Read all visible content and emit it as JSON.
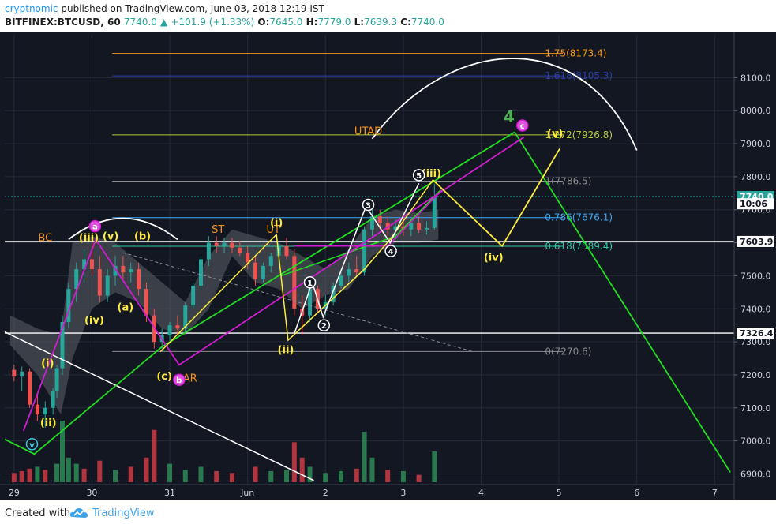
{
  "header": {
    "author": "cryptnomic",
    "published": "published on TradingView.com, June 03, 2018 12:19 IST",
    "symbol": "BITFINEX:BTCUSD, 60",
    "last": "7740.0",
    "change_arrow": "▲",
    "change": "+101.9 (+1.33%)",
    "o_label": "O:",
    "o_value": "7645.0",
    "h_label": "H:",
    "h_value": "7779.0",
    "l_label": "L:",
    "l_value": "7639.3",
    "c_label": "C:",
    "c_value": "7740.0"
  },
  "footer": {
    "created_with": "Created with",
    "brand": "TradingView"
  },
  "chart_data": {
    "type": "candlestick",
    "symbol": "BITFINEX:BTCUSD",
    "interval": "60",
    "x_ticks": [
      "29",
      "30",
      "31",
      "Jun",
      "2",
      "3",
      "4",
      "5",
      "6",
      "7"
    ],
    "x_tick_days": [
      29,
      30,
      31,
      32,
      33,
      34,
      35,
      36,
      37,
      38
    ],
    "y_ticks": [
      6900,
      7000,
      7100,
      7200,
      7300,
      7400,
      7500,
      7600,
      7700,
      7800,
      7900,
      8000,
      8100
    ],
    "ylim": [
      6870,
      8230
    ],
    "xlim": [
      28.88,
      38.25
    ],
    "price_tags": [
      {
        "label": "7740.0",
        "value": 7740,
        "color": "#26a69a",
        "text_color": "#ffffff"
      },
      {
        "label": "10:06",
        "value": 7718,
        "color": "#ffffff",
        "text_color": "#131722"
      },
      {
        "label": "7603.9",
        "value": 7603.9,
        "color": "#ffffff",
        "text_color": "#131722"
      },
      {
        "label": "7326.4",
        "value": 7326.4,
        "color": "#ffffff",
        "text_color": "#131722"
      }
    ],
    "horizontal_lines": [
      7603.9,
      7326.4
    ],
    "last_price_line": 7740,
    "fib_levels": [
      {
        "label": "1.75(8173.4)",
        "ratio": 1.75,
        "value": 8173.4,
        "color": "#f7931a"
      },
      {
        "label": "1.618(8105.3)",
        "ratio": 1.618,
        "value": 8105.3,
        "color": "#2a3ea8"
      },
      {
        "label": "1.272(7926.8)",
        "ratio": 1.272,
        "value": 7926.8,
        "color": "#b5c93a"
      },
      {
        "label": "1(7786.5)",
        "ratio": 1,
        "value": 7786.5,
        "color": "#8a8a8a"
      },
      {
        "label": "0.786(7676.1)",
        "ratio": 0.786,
        "value": 7676.1,
        "color": "#3fa9f5"
      },
      {
        "label": "0.618(7589.4)",
        "ratio": 0.618,
        "value": 7589.4,
        "color": "#2ec7a0"
      },
      {
        "label": "0(7270.6)",
        "ratio": 0,
        "value": 7270.6,
        "color": "#8a8a8a"
      }
    ],
    "candles": [
      [
        29.0,
        7215,
        7230,
        7180,
        7195
      ],
      [
        29.1,
        7195,
        7225,
        7150,
        7210
      ],
      [
        29.2,
        7210,
        7220,
        7100,
        7110
      ],
      [
        29.3,
        7110,
        7140,
        7060,
        7080
      ],
      [
        29.4,
        7080,
        7120,
        7040,
        7100
      ],
      [
        29.5,
        7100,
        7160,
        7080,
        7150
      ],
      [
        29.55,
        7150,
        7230,
        7130,
        7220
      ],
      [
        29.62,
        7220,
        7380,
        7200,
        7360
      ],
      [
        29.7,
        7360,
        7480,
        7340,
        7460
      ],
      [
        29.8,
        7460,
        7540,
        7420,
        7520
      ],
      [
        29.9,
        7520,
        7580,
        7480,
        7550
      ],
      [
        30.0,
        7550,
        7600,
        7500,
        7520
      ],
      [
        30.1,
        7520,
        7560,
        7420,
        7440
      ],
      [
        30.2,
        7440,
        7520,
        7420,
        7500
      ],
      [
        30.3,
        7500,
        7560,
        7470,
        7530
      ],
      [
        30.4,
        7530,
        7560,
        7490,
        7510
      ],
      [
        30.5,
        7510,
        7540,
        7480,
        7520
      ],
      [
        30.6,
        7520,
        7540,
        7440,
        7460
      ],
      [
        30.7,
        7460,
        7480,
        7360,
        7380
      ],
      [
        30.8,
        7380,
        7400,
        7280,
        7300
      ],
      [
        30.9,
        7300,
        7340,
        7270,
        7320
      ],
      [
        31.0,
        7320,
        7360,
        7300,
        7350
      ],
      [
        31.1,
        7350,
        7380,
        7320,
        7340
      ],
      [
        31.2,
        7340,
        7420,
        7330,
        7410
      ],
      [
        31.3,
        7410,
        7480,
        7400,
        7470
      ],
      [
        31.4,
        7470,
        7560,
        7460,
        7550
      ],
      [
        31.5,
        7550,
        7620,
        7530,
        7600
      ],
      [
        31.6,
        7600,
        7620,
        7570,
        7590
      ],
      [
        31.7,
        7590,
        7615,
        7570,
        7600
      ],
      [
        31.8,
        7600,
        7615,
        7570,
        7585
      ],
      [
        31.9,
        7585,
        7605,
        7560,
        7570
      ],
      [
        32.0,
        7570,
        7590,
        7520,
        7540
      ],
      [
        32.1,
        7540,
        7560,
        7470,
        7490
      ],
      [
        32.2,
        7490,
        7540,
        7480,
        7530
      ],
      [
        32.3,
        7530,
        7570,
        7510,
        7560
      ],
      [
        32.4,
        7560,
        7600,
        7540,
        7590
      ],
      [
        32.5,
        7590,
        7615,
        7550,
        7560
      ],
      [
        32.6,
        7560,
        7580,
        7380,
        7400
      ],
      [
        32.7,
        7400,
        7440,
        7320,
        7380
      ],
      [
        32.8,
        7380,
        7480,
        7360,
        7460
      ],
      [
        32.9,
        7460,
        7470,
        7390,
        7400
      ],
      [
        33.0,
        7400,
        7440,
        7380,
        7420
      ],
      [
        33.1,
        7420,
        7480,
        7410,
        7470
      ],
      [
        33.2,
        7470,
        7520,
        7460,
        7500
      ],
      [
        33.3,
        7500,
        7540,
        7480,
        7520
      ],
      [
        33.4,
        7520,
        7560,
        7500,
        7510
      ],
      [
        33.5,
        7510,
        7650,
        7500,
        7640
      ],
      [
        33.6,
        7640,
        7700,
        7620,
        7680
      ],
      [
        33.7,
        7680,
        7700,
        7640,
        7660
      ],
      [
        33.8,
        7660,
        7680,
        7620,
        7640
      ],
      [
        33.9,
        7640,
        7670,
        7610,
        7650
      ],
      [
        34.0,
        7650,
        7680,
        7620,
        7640
      ],
      [
        34.1,
        7640,
        7670,
        7620,
        7660
      ],
      [
        34.2,
        7660,
        7680,
        7630,
        7640
      ],
      [
        34.3,
        7640,
        7665,
        7625,
        7645
      ],
      [
        34.4,
        7645,
        7779,
        7639.3,
        7740
      ]
    ],
    "cloud": [
      [
        28.95,
        7380,
        7290
      ],
      [
        29.3,
        7340,
        7200
      ],
      [
        29.6,
        7320,
        7080
      ],
      [
        29.75,
        7600,
        7250
      ],
      [
        30.0,
        7620,
        7400
      ],
      [
        30.3,
        7600,
        7450
      ],
      [
        30.6,
        7540,
        7420
      ],
      [
        30.9,
        7480,
        7340
      ],
      [
        31.2,
        7420,
        7320
      ],
      [
        31.5,
        7560,
        7400
      ],
      [
        31.8,
        7640,
        7560
      ],
      [
        32.1,
        7620,
        7480
      ],
      [
        32.4,
        7600,
        7460
      ],
      [
        32.7,
        7560,
        7400
      ],
      [
        33.0,
        7520,
        7440
      ],
      [
        33.3,
        7580,
        7460
      ],
      [
        33.6,
        7680,
        7560
      ],
      [
        33.9,
        7700,
        7600
      ],
      [
        34.2,
        7690,
        7600
      ],
      [
        34.45,
        7700,
        7610
      ]
    ],
    "volume_max": 100,
    "volumes": [
      [
        29.0,
        15,
        "down"
      ],
      [
        29.1,
        18,
        "down"
      ],
      [
        29.2,
        22,
        "down"
      ],
      [
        29.3,
        25,
        "up"
      ],
      [
        29.4,
        20,
        "down"
      ],
      [
        29.55,
        30,
        "up"
      ],
      [
        29.62,
        100,
        "up"
      ],
      [
        29.7,
        40,
        "up"
      ],
      [
        29.8,
        30,
        "up"
      ],
      [
        29.9,
        22,
        "down"
      ],
      [
        30.1,
        35,
        "down"
      ],
      [
        30.3,
        20,
        "up"
      ],
      [
        30.5,
        25,
        "down"
      ],
      [
        30.7,
        40,
        "down"
      ],
      [
        30.8,
        85,
        "down"
      ],
      [
        31.0,
        30,
        "up"
      ],
      [
        31.2,
        20,
        "up"
      ],
      [
        31.4,
        25,
        "up"
      ],
      [
        31.6,
        18,
        "down"
      ],
      [
        31.8,
        15,
        "down"
      ],
      [
        32.1,
        25,
        "down"
      ],
      [
        32.3,
        18,
        "up"
      ],
      [
        32.5,
        20,
        "up"
      ],
      [
        32.6,
        65,
        "down"
      ],
      [
        32.7,
        40,
        "down"
      ],
      [
        32.8,
        25,
        "up"
      ],
      [
        33.0,
        15,
        "up"
      ],
      [
        33.2,
        18,
        "up"
      ],
      [
        33.4,
        22,
        "down"
      ],
      [
        33.5,
        82,
        "up"
      ],
      [
        33.6,
        40,
        "up"
      ],
      [
        33.8,
        20,
        "down"
      ],
      [
        34.0,
        18,
        "up"
      ],
      [
        34.2,
        12,
        "down"
      ],
      [
        34.4,
        50,
        "up"
      ]
    ],
    "annotations": {
      "top_labels": [
        {
          "text": "BC",
          "day": 29.4,
          "price": 7605,
          "color": "#f7931a"
        },
        {
          "text": "ST",
          "day": 31.62,
          "price": 7630,
          "color": "#f7931a"
        },
        {
          "text": "UT",
          "day": 32.33,
          "price": 7630,
          "color": "#f7931a"
        },
        {
          "text": "UTAD",
          "day": 33.55,
          "price": 7928,
          "color": "#f7931a"
        },
        {
          "text": "AR",
          "day": 31.26,
          "price": 7180,
          "color": "#f7931a"
        },
        {
          "text": "4",
          "day": 35.36,
          "price": 7965,
          "color": "#4caf50"
        }
      ],
      "yellow_labels": [
        {
          "text": "(i)",
          "day": 29.43,
          "price": 7225
        },
        {
          "text": "(ii)",
          "day": 29.44,
          "price": 7045
        },
        {
          "text": "(iii)",
          "day": 29.96,
          "price": 7605
        },
        {
          "text": "(iv)",
          "day": 30.03,
          "price": 7355
        },
        {
          "text": "(v)",
          "day": 30.24,
          "price": 7610
        },
        {
          "text": "(a)",
          "day": 30.43,
          "price": 7395
        },
        {
          "text": "(b)",
          "day": 30.65,
          "price": 7610
        },
        {
          "text": "(c)",
          "day": 30.93,
          "price": 7185
        },
        {
          "text": "(i)",
          "day": 32.37,
          "price": 7650
        },
        {
          "text": "(ii)",
          "day": 32.49,
          "price": 7265
        },
        {
          "text": "(iii)",
          "day": 34.36,
          "price": 7800
        },
        {
          "text": "(iv)",
          "day": 35.16,
          "price": 7545
        },
        {
          "text": "(v)",
          "day": 35.95,
          "price": 7920
        }
      ],
      "circle_white": [
        {
          "text": "1",
          "day": 32.8,
          "price": 7480
        },
        {
          "text": "2",
          "day": 32.98,
          "price": 7350
        },
        {
          "text": "3",
          "day": 33.55,
          "price": 7715
        },
        {
          "text": "4",
          "day": 33.84,
          "price": 7575
        },
        {
          "text": "5",
          "day": 34.2,
          "price": 7805
        }
      ],
      "circle_magenta": [
        {
          "text": "a",
          "day": 30.04,
          "price": 7650
        },
        {
          "text": "b",
          "day": 31.12,
          "price": 7185
        },
        {
          "text": "c",
          "day": 35.53,
          "price": 7955
        }
      ],
      "circle_cyan": [
        {
          "text": "v",
          "day": 29.23,
          "price": 6990
        }
      ]
    },
    "lines": {
      "green_channel_lower": [
        [
          28.88,
          7005
        ],
        [
          29.26,
          6960
        ],
        [
          30.9,
          7285
        ],
        [
          35.43,
          7935
        ]
      ],
      "green_channel_upper": [
        [
          32.43,
          7500
        ],
        [
          33.9,
          7620
        ],
        [
          34.48,
          7760
        ]
      ],
      "green_drop": [
        [
          35.43,
          7935
        ],
        [
          38.2,
          6905
        ]
      ],
      "magenta_main": [
        [
          29.12,
          7030
        ],
        [
          30.05,
          7610
        ],
        [
          31.12,
          7230
        ],
        [
          35.55,
          7920
        ]
      ],
      "magenta_upper": [
        [
          32.6,
          7590
        ],
        [
          33.8,
          7590
        ],
        [
          34.5,
          7760
        ]
      ],
      "yellow_path": [
        [
          34.38,
          7790
        ],
        [
          35.27,
          7590
        ],
        [
          36.01,
          7885
        ]
      ],
      "yellow_channel": [
        [
          30.88,
          7270
        ],
        [
          32.37,
          7625
        ],
        [
          32.52,
          7305
        ],
        [
          33.5,
          7520
        ],
        [
          33.83,
          7610
        ],
        [
          34.38,
          7790
        ]
      ],
      "white_count": [
        [
          32.6,
          7325
        ],
        [
          32.83,
          7480
        ],
        [
          32.97,
          7375
        ],
        [
          33.52,
          7710
        ],
        [
          33.83,
          7600
        ],
        [
          34.2,
          7780
        ]
      ],
      "white_trend": [
        [
          28.88,
          7330
        ],
        [
          32.85,
          6880
        ]
      ],
      "dashed_trend": [
        [
          30.4,
          7570
        ],
        [
          34.9,
          7270
        ]
      ],
      "arc_top": {
        "center_day": 30.4,
        "center_price": 7650,
        "rx_days": 0.7,
        "ry_price": 40
      },
      "arc_big": {
        "from": [
          33.6,
          7915
        ],
        "peak": [
          35.25,
          8150
        ],
        "to": [
          37.0,
          7880
        ]
      }
    },
    "colors": {
      "up": "#26a69a",
      "down": "#ef5350",
      "vol_up": "#2e8b57",
      "vol_down": "#cc3b44",
      "green": "#22dd22",
      "magenta": "#d01cd0",
      "yellow": "#ffeb3b",
      "white": "#ffffff",
      "grid": "#242a3a",
      "axis_text": "#d1d4dc"
    }
  }
}
